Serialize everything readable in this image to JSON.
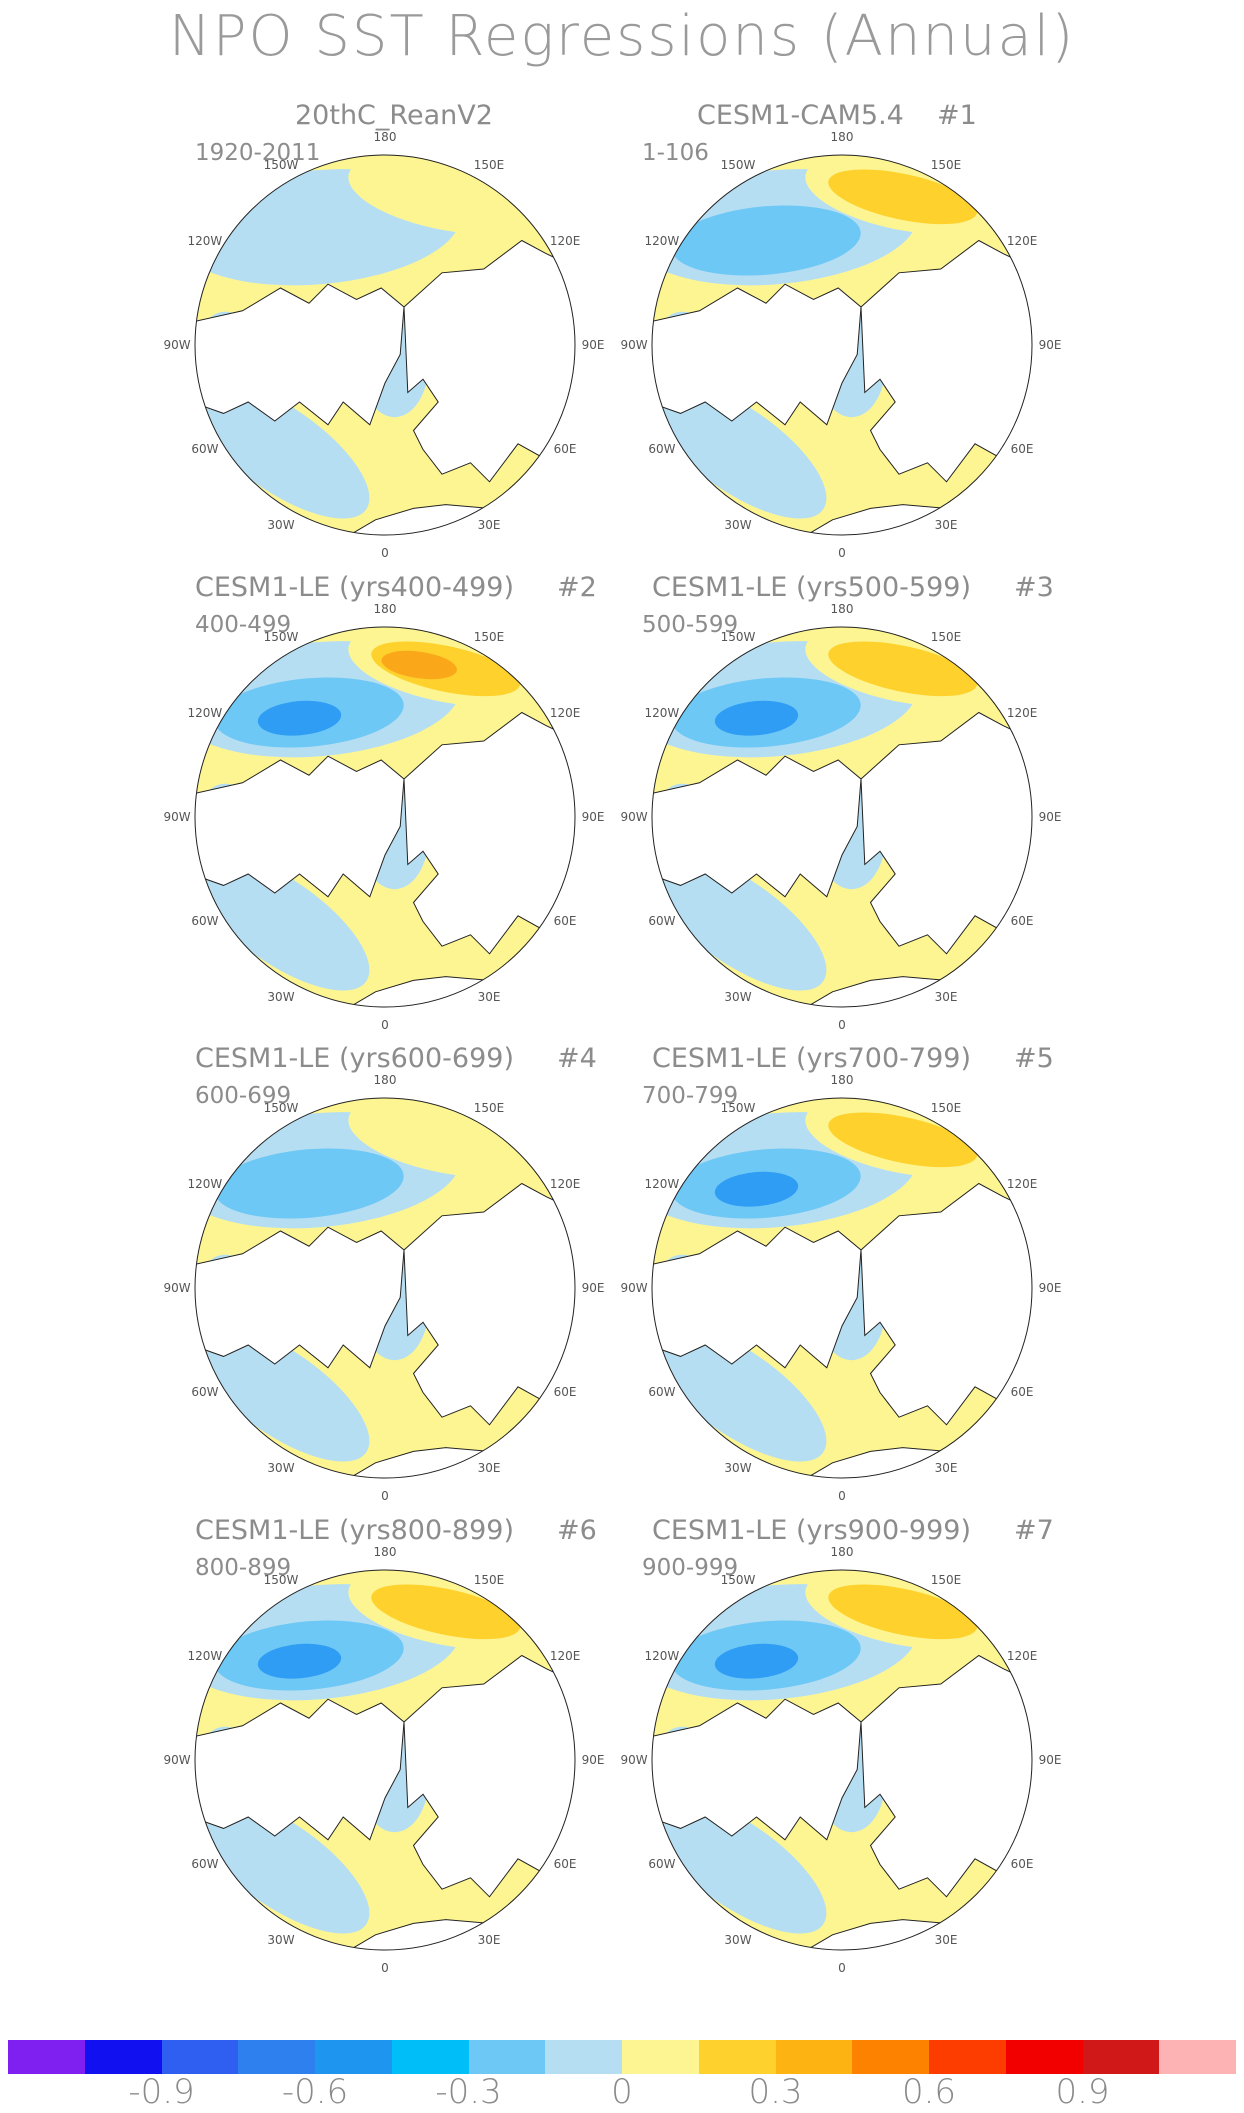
{
  "title": "NPO SST Regressions (Annual)",
  "colors": {
    "neg_strong": "#2f9df4",
    "neg_mid": "#6ec8f5",
    "neg_weak": "#b6def2",
    "pos_weak": "#fdf592",
    "pos_mid": "#fed12c",
    "pos_strong": "#fba71a",
    "land": "#ffffff",
    "coast": "#222222"
  },
  "lon_labels": [
    "180",
    "150E",
    "120E",
    "90E",
    "60E",
    "30E",
    "0",
    "30W",
    "60W",
    "90W",
    "120W",
    "150W"
  ],
  "panels": [
    {
      "title": "20thC_ReanV2",
      "number": "",
      "period": "1920-2011"
    },
    {
      "title": "CESM1-CAM5.4",
      "number": "#1",
      "period": "1-106"
    },
    {
      "title": "CESM1-LE (yrs400-499)",
      "number": "#2",
      "period": "400-499"
    },
    {
      "title": "CESM1-LE (yrs500-599)",
      "number": "#3",
      "period": "500-599"
    },
    {
      "title": "CESM1-LE (yrs600-699)",
      "number": "#4",
      "period": "600-699"
    },
    {
      "title": "CESM1-LE (yrs700-799)",
      "number": "#5",
      "period": "700-799"
    },
    {
      "title": "CESM1-LE (yrs800-899)",
      "number": "#6",
      "period": "800-899"
    },
    {
      "title": "CESM1-LE (yrs900-999)",
      "number": "#7",
      "period": "900-999"
    }
  ],
  "colorbar": {
    "colors": [
      "#8020f0",
      "#1010f0",
      "#2f5ff0",
      "#2f80ef",
      "#1e96f0",
      "#00bff8",
      "#6ec8f5",
      "#b6def2",
      "#fdf592",
      "#fed12c",
      "#fdb413",
      "#fd8200",
      "#fd3c00",
      "#f20000",
      "#d01818",
      "#fdb3b3"
    ],
    "labels": [
      "-0.9",
      "-0.6",
      "-0.3",
      "0",
      "0.3",
      "0.6",
      "0.9"
    ]
  }
}
